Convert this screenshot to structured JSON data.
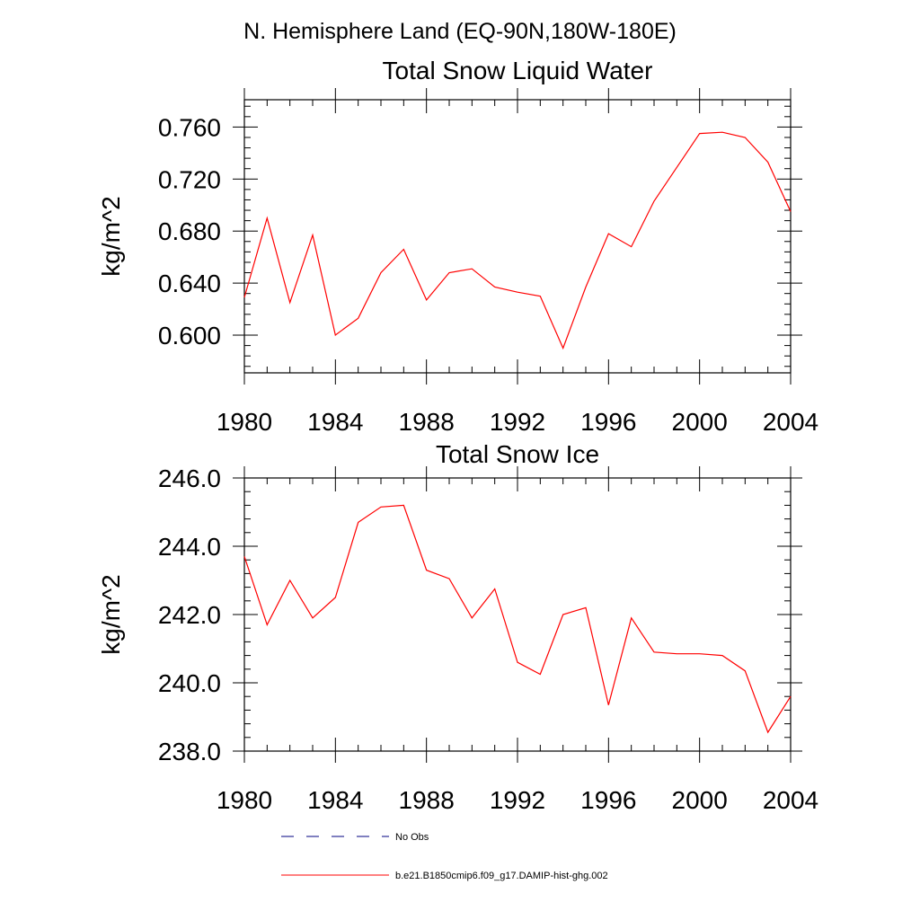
{
  "page": {
    "main_title": "N. Hemisphere Land (EQ-90N,180W-180E)"
  },
  "colors": {
    "series": "#ff0000",
    "no_obs": "#000080",
    "axis": "#000000"
  },
  "legend": {
    "position": "bottom",
    "entries": [
      {
        "label": "No Obs",
        "style": "dashed",
        "color": "#000080"
      },
      {
        "label": "b.e21.B1850cmip6.f09_g17.DAMIP-hist-ghg.002",
        "style": "solid",
        "color": "#ff0000"
      }
    ]
  },
  "chart_data": [
    {
      "type": "line",
      "title": "Total Snow Liquid Water",
      "xlabel": "",
      "ylabel": "kg/m^2",
      "xlim": [
        1980,
        2004
      ],
      "ylim": [
        0.571,
        0.781
      ],
      "grid": false,
      "x_ticks": [
        "1980",
        "1984",
        "1988",
        "1992",
        "1996",
        "2000",
        "2004"
      ],
      "y_ticks": [
        "0.600",
        "0.640",
        "0.680",
        "0.720",
        "0.760"
      ],
      "y_tick_values": [
        0.6,
        0.64,
        0.68,
        0.72,
        0.76
      ],
      "x": [
        1980,
        1981,
        1982,
        1983,
        1984,
        1985,
        1986,
        1987,
        1988,
        1989,
        1990,
        1991,
        1992,
        1993,
        1994,
        1995,
        1996,
        1997,
        1998,
        1999,
        2000,
        2001,
        2002,
        2003,
        2004
      ],
      "series": [
        {
          "name": "b.e21.B1850cmip6.f09_g17.DAMIP-hist-ghg.002",
          "values": [
            0.629,
            0.69,
            0.625,
            0.677,
            0.6,
            0.613,
            0.648,
            0.666,
            0.627,
            0.648,
            0.651,
            0.637,
            0.633,
            0.63,
            0.59,
            0.637,
            0.678,
            0.668,
            0.703,
            0.729,
            0.755,
            0.756,
            0.752,
            0.733,
            0.695
          ]
        }
      ]
    },
    {
      "type": "line",
      "title": "Total Snow Ice",
      "xlabel": "",
      "ylabel": "kg/m^2",
      "xlim": [
        1980,
        2004
      ],
      "ylim": [
        238.0,
        246.0
      ],
      "grid": false,
      "x_ticks": [
        "1980",
        "1984",
        "1988",
        "1992",
        "1996",
        "2000",
        "2004"
      ],
      "y_ticks": [
        "238.0",
        "240.0",
        "242.0",
        "244.0",
        "246.0"
      ],
      "y_tick_values": [
        238.0,
        240.0,
        242.0,
        244.0,
        246.0
      ],
      "x": [
        1980,
        1981,
        1982,
        1983,
        1984,
        1985,
        1986,
        1987,
        1988,
        1989,
        1990,
        1991,
        1992,
        1993,
        1994,
        1995,
        1996,
        1997,
        1998,
        1999,
        2000,
        2001,
        2002,
        2003,
        2004
      ],
      "series": [
        {
          "name": "b.e21.B1850cmip6.f09_g17.DAMIP-hist-ghg.002",
          "values": [
            243.7,
            241.7,
            243.0,
            241.9,
            242.5,
            244.7,
            245.15,
            245.2,
            243.3,
            243.05,
            241.9,
            242.75,
            240.6,
            240.25,
            242.0,
            242.2,
            239.35,
            241.9,
            240.9,
            240.85,
            240.85,
            240.8,
            240.35,
            238.55,
            239.6
          ]
        }
      ]
    }
  ]
}
